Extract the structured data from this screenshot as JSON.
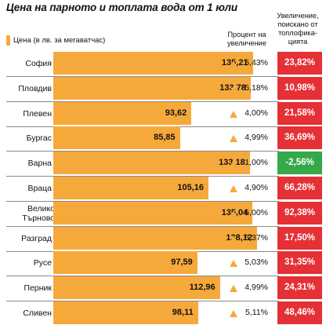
{
  "title": "Цена на парното и топлата вода от 1 юли",
  "legend_label": "Цена (в лв. за мегаватчас)",
  "pct_header": "Процент на увеличение",
  "inc_header": "Увеличение, поискано от топлофика-цията",
  "colors": {
    "bar": "#f6a93b",
    "triangle": "#f6a93b",
    "increase": "#e53036",
    "decrease": "#35a84a"
  },
  "chart_data": {
    "type": "bar",
    "orientation": "horizontal",
    "categories": [
      "София",
      "Пловдив",
      "Плевен",
      "Бургас",
      "Варна",
      "Враца",
      "Велико Търново",
      "Разград",
      "Русе",
      "Перник",
      "Сливен"
    ],
    "values": [
      135.21,
      133.78,
      93.62,
      85.85,
      133.18,
      105.16,
      135.04,
      138.12,
      97.59,
      112.96,
      98.11
    ],
    "value_labels": [
      "135,21",
      "133,78",
      "93,62",
      "85,85",
      "133,18",
      "105,16",
      "135,04",
      "138,12",
      "97,59",
      "112,96",
      "98,11"
    ],
    "percent_increase": [
      "5,43%",
      "5,18%",
      "4,00%",
      "4,99%",
      "1,00%",
      "4,90%",
      "5,00%",
      "5,37%",
      "5,03%",
      "4,99%",
      "5,11%"
    ],
    "requested_increase": [
      "23,82%",
      "10,98%",
      "21,58%",
      "36,69%",
      "-2,56%",
      "66,28%",
      "92,38%",
      "17,50%",
      "31,35%",
      "24,31%",
      "48,46%"
    ],
    "requested_increase_values": [
      23.82,
      10.98,
      21.58,
      36.69,
      -2.56,
      66.28,
      92.38,
      17.5,
      31.35,
      24.31,
      48.46
    ],
    "xlim": [
      0,
      145
    ],
    "grid": false
  }
}
